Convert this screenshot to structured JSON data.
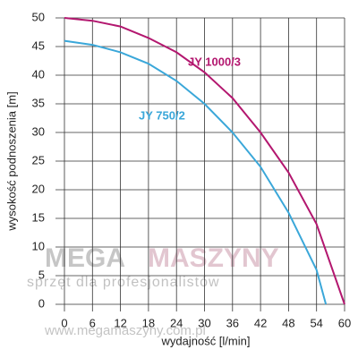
{
  "chart_data": {
    "type": "line",
    "xlabel": "wydajność [l/min]",
    "ylabel": "wysokość podnoszenia [m]",
    "series": [
      {
        "name": "JY 1000/3",
        "color": "#b3176f",
        "x": [
          0,
          6,
          12,
          18,
          24,
          30,
          36,
          42,
          48,
          54,
          60
        ],
        "values": [
          50,
          49.5,
          48.5,
          46.5,
          44,
          40.5,
          36,
          30,
          23,
          14,
          0
        ]
      },
      {
        "name": "JY 750/2",
        "color": "#3aa7d9",
        "x": [
          0,
          6,
          12,
          18,
          24,
          30,
          36,
          42,
          48,
          54,
          56
        ],
        "values": [
          46,
          45.3,
          44,
          42,
          39,
          35,
          30,
          24,
          16,
          6,
          0
        ]
      }
    ],
    "xlim": [
      0,
      60
    ],
    "xticks": [
      0,
      6,
      12,
      18,
      24,
      30,
      36,
      42,
      48,
      54,
      60
    ],
    "ylim": [
      0,
      50
    ],
    "yticks": [
      0,
      5,
      10,
      15,
      20,
      25,
      30,
      35,
      40,
      45,
      50
    ],
    "grid": true
  },
  "watermark": {
    "brand1": "MEGA",
    "brand2": "MASZYNY",
    "slogan": "sprzęt dla profesjonalistów",
    "url": "www.megamaszyny.com.pl"
  }
}
